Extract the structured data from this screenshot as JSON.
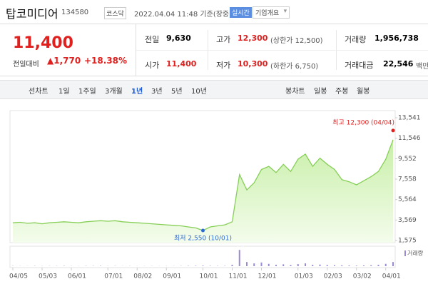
{
  "header": {
    "name": "탑코미디어",
    "code": "134580",
    "market": "코스닥",
    "time": "2022.04.04 11:48 기준(장중)",
    "realtime": "실시간",
    "company": "기업개요"
  },
  "price": {
    "current": "11,400",
    "change_label": "전일대비",
    "change": "1,770",
    "rate": "+18.38%"
  },
  "stats": {
    "rows": [
      [
        {
          "label": "전일",
          "value": "9,630"
        },
        {
          "label": "고가",
          "value": "12,300",
          "note": "(상한가 12,500)"
        },
        {
          "label": "거래량",
          "value": "1,956,738"
        }
      ],
      [
        {
          "label": "시가",
          "value": "11,400"
        },
        {
          "label": "저가",
          "value": "10,300",
          "note": "(하한가 6,750)"
        },
        {
          "label": "거래대금",
          "value": "22,546",
          "note": "백만"
        }
      ]
    ]
  },
  "tabs": {
    "line_label": "선차트",
    "periods": [
      "1일",
      "1주일",
      "3개월",
      "1년",
      "3년",
      "5년",
      "10년"
    ],
    "active": "1년",
    "candle_label": "봉차트",
    "candles": [
      "일봉",
      "주봉",
      "월봉"
    ]
  },
  "chart_data": {
    "type": "area",
    "categories": [
      "04/05",
      null,
      null,
      null,
      "05/03",
      null,
      null,
      null,
      "06/01",
      null,
      null,
      null,
      null,
      "07/01",
      null,
      null,
      null,
      "08/02",
      null,
      null,
      null,
      "09/01",
      null,
      null,
      null,
      null,
      "10/01",
      null,
      null,
      null,
      "11/01",
      null,
      null,
      null,
      "12/01",
      null,
      null,
      null,
      null,
      "01/03",
      null,
      null,
      null,
      "02/03",
      null,
      null,
      null,
      "03/02",
      null,
      null,
      null,
      "04/01",
      null
    ],
    "values": [
      3300,
      3350,
      3250,
      3300,
      3200,
      3300,
      3350,
      3400,
      3350,
      3300,
      3400,
      3450,
      3500,
      3450,
      3500,
      3400,
      3350,
      3300,
      3250,
      3200,
      3150,
      3100,
      3050,
      3000,
      2900,
      2800,
      2550,
      2900,
      3000,
      3100,
      3400,
      8000,
      6500,
      7200,
      8500,
      8800,
      8200,
      9000,
      8300,
      9500,
      10000,
      8800,
      9600,
      9000,
      8500,
      7500,
      7300,
      7000,
      7400,
      7800,
      8300,
      9500,
      11400
    ],
    "color": "#86cf57",
    "ylim": [
      1575,
      13541
    ],
    "yticks": [
      {
        "value": 1575,
        "label": "1,575"
      },
      {
        "value": 3569,
        "label": "3,569"
      },
      {
        "value": 5564,
        "label": "5,564"
      },
      {
        "value": 7558,
        "label": "7,558"
      },
      {
        "value": 9552,
        "label": "9,552"
      },
      {
        "value": 11546,
        "label": "11,546"
      },
      {
        "value": 13541,
        "label": "13,541"
      }
    ],
    "annotations": [
      {
        "text": "최고 12,300 (04/04)",
        "value": 12300,
        "color": "#e0201f"
      },
      {
        "text": "최저 2,550 (10/01)",
        "value": 2550,
        "color": "#2b6ad6"
      }
    ],
    "volume_label": "거래량",
    "volume_color": "#9a8ad6",
    "volume_ylim": [
      0,
      40000000
    ],
    "volume_values": [
      400000,
      300000,
      250000,
      500000,
      300000,
      350000,
      400000,
      600000,
      300000,
      250000,
      500000,
      450000,
      700000,
      300000,
      400000,
      250000,
      300000,
      200000,
      250000,
      300000,
      200000,
      250000,
      300000,
      400000,
      600000,
      800000,
      1200000,
      700000,
      500000,
      600000,
      3000000,
      35000000,
      9000000,
      6000000,
      8000000,
      5000000,
      3000000,
      4000000,
      2500000,
      4500000,
      6000000,
      3000000,
      3500000,
      2500000,
      2000000,
      1800000,
      1500000,
      1200000,
      1500000,
      2000000,
      3000000,
      5000000,
      9000000
    ]
  }
}
